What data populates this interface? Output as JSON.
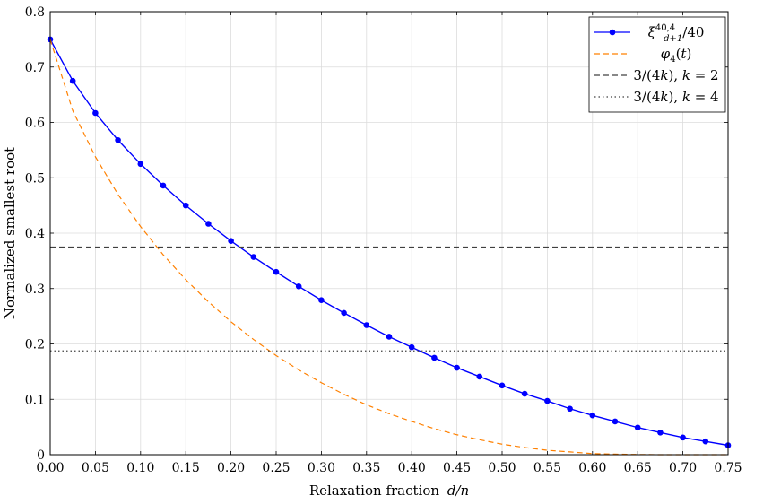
{
  "chart_data": {
    "type": "line",
    "title": "",
    "xlabel": "Relaxation fraction",
    "xlabel_math": "d/n",
    "ylabel": "Normalized smallest root",
    "xlim": [
      0,
      0.75
    ],
    "ylim": [
      0,
      0.8
    ],
    "grid": true,
    "legend_position": "top-right",
    "x_ticks": [
      "0.00",
      "0.05",
      "0.10",
      "0.15",
      "0.20",
      "0.25",
      "0.30",
      "0.35",
      "0.40",
      "0.45",
      "0.50",
      "0.55",
      "0.60",
      "0.65",
      "0.70",
      "0.75"
    ],
    "y_ticks": [
      "0",
      "0.1",
      "0.2",
      "0.3",
      "0.4",
      "0.5",
      "0.6",
      "0.7",
      "0.8"
    ],
    "series": [
      {
        "name": "ξ^{40,4}_{d+1}/40",
        "style": "solid-markers",
        "color": "#0000ff",
        "x": [
          0.0,
          0.025,
          0.05,
          0.075,
          0.1,
          0.125,
          0.15,
          0.175,
          0.2,
          0.225,
          0.25,
          0.275,
          0.3,
          0.325,
          0.35,
          0.375,
          0.4,
          0.425,
          0.45,
          0.475,
          0.5,
          0.525,
          0.55,
          0.575,
          0.6,
          0.625,
          0.65,
          0.675,
          0.7,
          0.725,
          0.75
        ],
        "y": [
          0.75,
          0.675,
          0.617,
          0.568,
          0.525,
          0.486,
          0.45,
          0.417,
          0.386,
          0.357,
          0.33,
          0.304,
          0.279,
          0.256,
          0.234,
          0.213,
          0.194,
          0.175,
          0.157,
          0.141,
          0.125,
          0.11,
          0.097,
          0.083,
          0.071,
          0.06,
          0.049,
          0.04,
          0.031,
          0.024,
          0.017
        ]
      },
      {
        "name": "φ_4(t)",
        "style": "dashed",
        "color": "#ff8000",
        "x": [
          0.0,
          0.025,
          0.05,
          0.075,
          0.1,
          0.125,
          0.15,
          0.175,
          0.2,
          0.225,
          0.25,
          0.275,
          0.3,
          0.325,
          0.35,
          0.375,
          0.4,
          0.425,
          0.45,
          0.475,
          0.5,
          0.525,
          0.55,
          0.575,
          0.6,
          0.625,
          0.65,
          0.675,
          0.7,
          0.725,
          0.75
        ],
        "y": [
          0.75,
          0.621,
          0.538,
          0.47,
          0.412,
          0.361,
          0.316,
          0.276,
          0.24,
          0.208,
          0.179,
          0.153,
          0.13,
          0.109,
          0.09,
          0.074,
          0.06,
          0.047,
          0.036,
          0.027,
          0.019,
          0.013,
          0.008,
          0.005,
          0.002,
          0.001,
          0.0003,
          0.0,
          0.0,
          0.0,
          0.0
        ]
      },
      {
        "name": "3/(4k), k = 2",
        "style": "dashed",
        "color": "#404040",
        "x": [
          0.0,
          0.75
        ],
        "y": [
          0.375,
          0.375
        ]
      },
      {
        "name": "3/(4k), k = 4",
        "style": "dotted",
        "color": "#404040",
        "x": [
          0.0,
          0.75
        ],
        "y": [
          0.1875,
          0.1875
        ]
      }
    ]
  }
}
